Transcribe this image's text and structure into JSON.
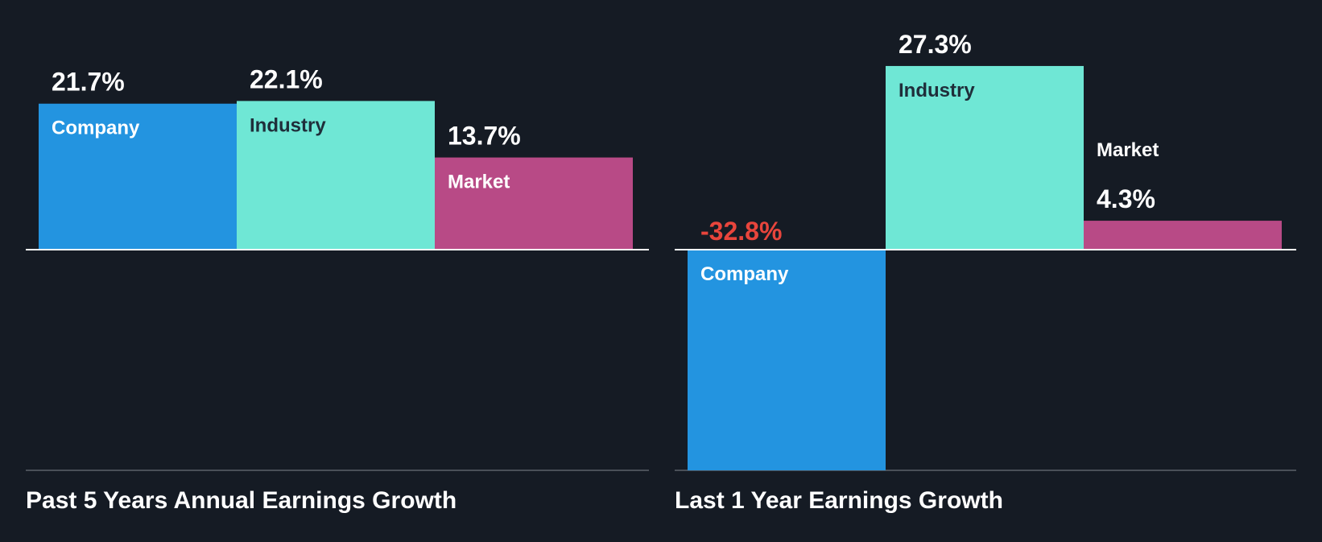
{
  "colors": {
    "background": "#151b24",
    "company": "#2394e0",
    "industry": "#6fe7d5",
    "market": "#b84a86",
    "negative_value": "#e8453c",
    "zero_line": "#ffffff",
    "baseline": "#4a5058",
    "label_light": "#ffffff",
    "label_dark": "#1f2e3a"
  },
  "chart_data": [
    {
      "type": "bar",
      "title": "Past 5 Years Annual Earnings Growth",
      "categories": [
        "Company",
        "Industry",
        "Market"
      ],
      "values": [
        21.7,
        22.1,
        13.7
      ],
      "value_labels": [
        "21.7%",
        "22.1%",
        "13.7%"
      ],
      "unit": "%",
      "ylim": [
        -32.8,
        27.3
      ],
      "grid": false,
      "legend": "none"
    },
    {
      "type": "bar",
      "title": "Last 1 Year Earnings Growth",
      "categories": [
        "Company",
        "Industry",
        "Market"
      ],
      "values": [
        -32.8,
        27.3,
        4.3
      ],
      "value_labels": [
        "-32.8%",
        "27.3%",
        "4.3%"
      ],
      "unit": "%",
      "ylim": [
        -32.8,
        27.3
      ],
      "grid": false,
      "legend": "none"
    }
  ]
}
